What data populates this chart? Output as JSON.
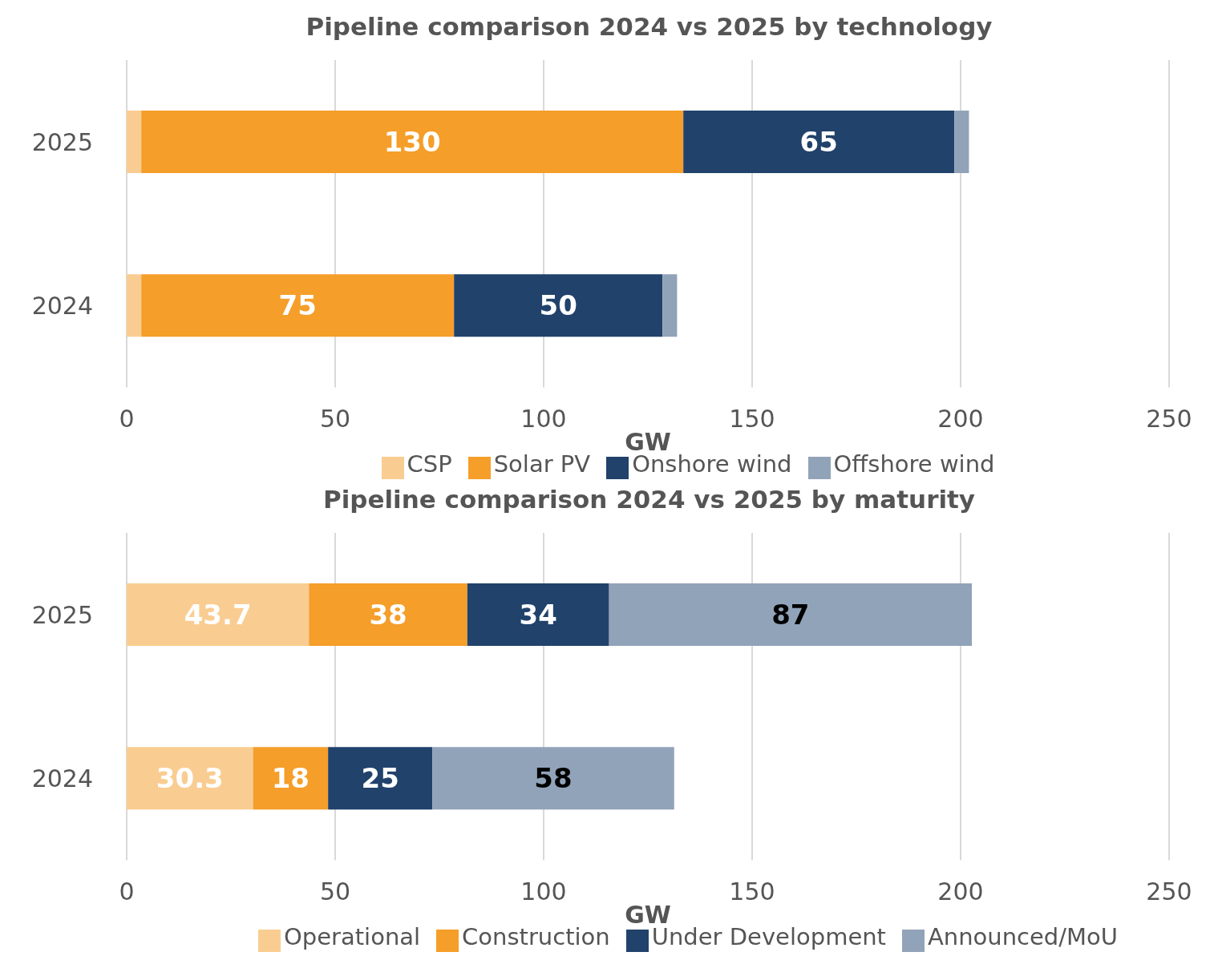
{
  "chart_data": [
    {
      "type": "bar",
      "title": "Pipeline comparison 2024 vs 2025 by technology",
      "xlabel": "GW",
      "orientation": "horizontal",
      "stacked": true,
      "categories": [
        "2025",
        "2024"
      ],
      "xlim": [
        0,
        250
      ],
      "xticks": [
        0,
        50,
        100,
        150,
        200,
        250
      ],
      "grid": "x",
      "legend": "bottom",
      "series": [
        {
          "name": "CSP",
          "color": "#f9cd92",
          "values": [
            3.5,
            3.5
          ],
          "value_labels": [
            null,
            null
          ]
        },
        {
          "name": "Solar PV",
          "color": "#f59e2a",
          "values": [
            130,
            75
          ],
          "value_labels": [
            "130",
            "75"
          ]
        },
        {
          "name": "Onshore wind",
          "color": "#21426b",
          "values": [
            65,
            50
          ],
          "value_labels": [
            "65",
            "50"
          ]
        },
        {
          "name": "Offshore wind",
          "color": "#91a3b8",
          "values": [
            3.5,
            3.5
          ],
          "value_labels": [
            null,
            null
          ]
        }
      ]
    },
    {
      "type": "bar",
      "title": "Pipeline comparison 2024 vs 2025 by maturity",
      "xlabel": "GW",
      "orientation": "horizontal",
      "stacked": true,
      "categories": [
        "2025",
        "2024"
      ],
      "xlim": [
        0,
        250
      ],
      "xticks": [
        0,
        50,
        100,
        150,
        200,
        250
      ],
      "grid": "x",
      "legend": "bottom",
      "data_labels": true,
      "series": [
        {
          "name": "Operational",
          "color": "#f9cd92",
          "values": [
            43.7,
            30.3
          ]
        },
        {
          "name": "Construction",
          "color": "#f59e2a",
          "values": [
            38,
            18
          ]
        },
        {
          "name": "Under Development",
          "color": "#21426b",
          "values": [
            34,
            25
          ]
        },
        {
          "name": "Announced/MoU",
          "color": "#91a3b8",
          "values": [
            87,
            58
          ]
        }
      ]
    }
  ]
}
